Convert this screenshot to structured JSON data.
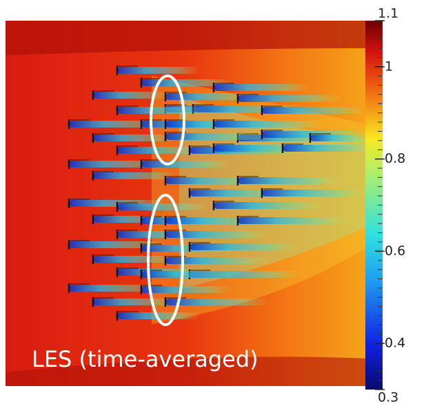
{
  "label": "LES (time-averaged)",
  "colorbar": {
    "lim": [
      0.3,
      1.1
    ],
    "ticks": [
      1.1,
      1,
      0.8,
      0.6,
      0.4,
      0.3
    ]
  }
}
